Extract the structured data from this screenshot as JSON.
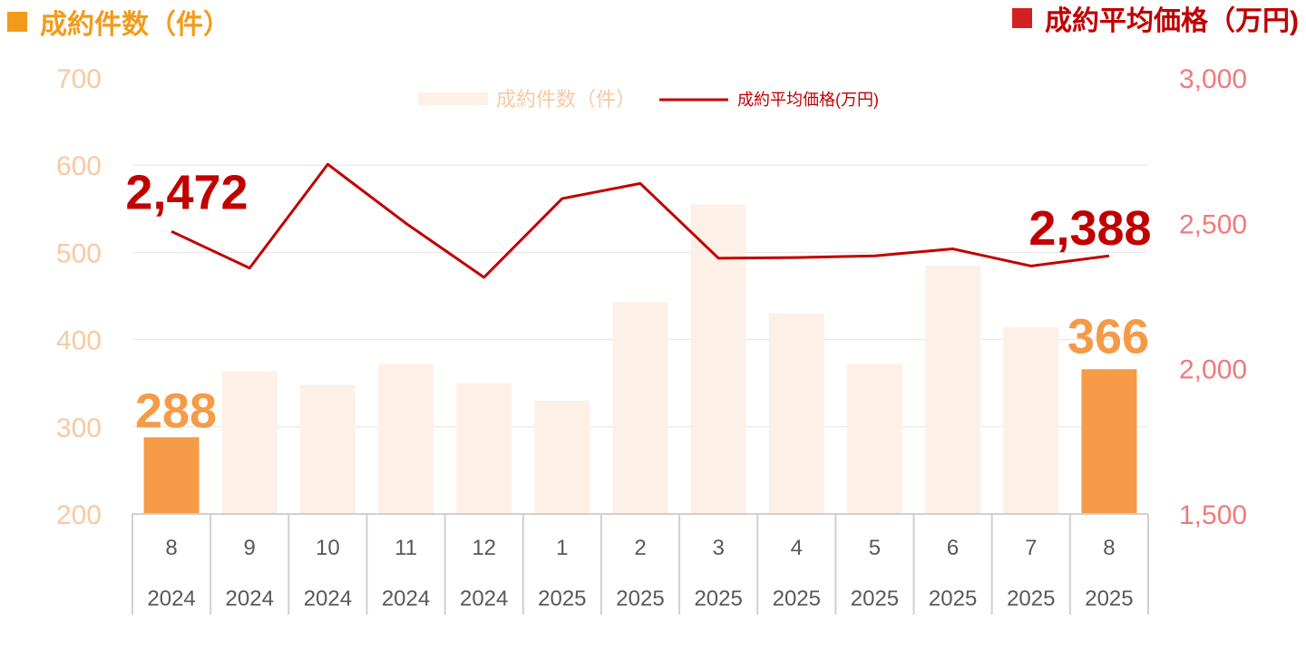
{
  "header": {
    "left_title": "成約件数（件）",
    "right_title": "成約平均価格（万円)"
  },
  "colors": {
    "bar": "#fdf0e6",
    "bar_highlight": "#f59a47",
    "line": "#c00000",
    "left_axis": "#f8c9a1",
    "right_axis": "#f07a7a"
  },
  "chart_data": {
    "type": "bar",
    "categories": [
      "8",
      "9",
      "10",
      "11",
      "12",
      "1",
      "2",
      "3",
      "4",
      "5",
      "6",
      "7",
      "8"
    ],
    "years": [
      "2024",
      "2024",
      "2024",
      "2024",
      "2024",
      "2025",
      "2025",
      "2025",
      "2025",
      "2025",
      "2025",
      "2025",
      "2025"
    ],
    "series": [
      {
        "name": "成約件数（件）",
        "type": "bar",
        "axis": "left",
        "values": [
          288,
          364,
          348,
          372,
          350,
          330,
          443,
          555,
          430,
          372,
          485,
          414,
          366
        ],
        "highlight": [
          0,
          12
        ]
      },
      {
        "name": "成約平均価格(万円)",
        "type": "line",
        "axis": "right",
        "values": [
          2472,
          2346,
          2703,
          2500,
          2314,
          2585,
          2637,
          2380,
          2382,
          2388,
          2412,
          2353,
          2388
        ]
      }
    ],
    "annotations": [
      {
        "text": "2,472",
        "series": 1,
        "index": 0
      },
      {
        "text": "2,388",
        "series": 1,
        "index": 12
      },
      {
        "text": "288",
        "series": 0,
        "index": 0
      },
      {
        "text": "366",
        "series": 0,
        "index": 12
      }
    ],
    "y_left": {
      "ticks": [
        "200",
        "300",
        "400",
        "500",
        "600",
        "700"
      ],
      "min": 200,
      "max": 700
    },
    "y_right": {
      "ticks": [
        "1,500",
        "2,000",
        "2,500",
        "3,000"
      ],
      "min": 1500,
      "max": 3000
    },
    "legend": {
      "bar_label": "成約件数（件）",
      "line_label": "成約平均価格(万円)",
      "position": "top"
    },
    "grid": true
  }
}
